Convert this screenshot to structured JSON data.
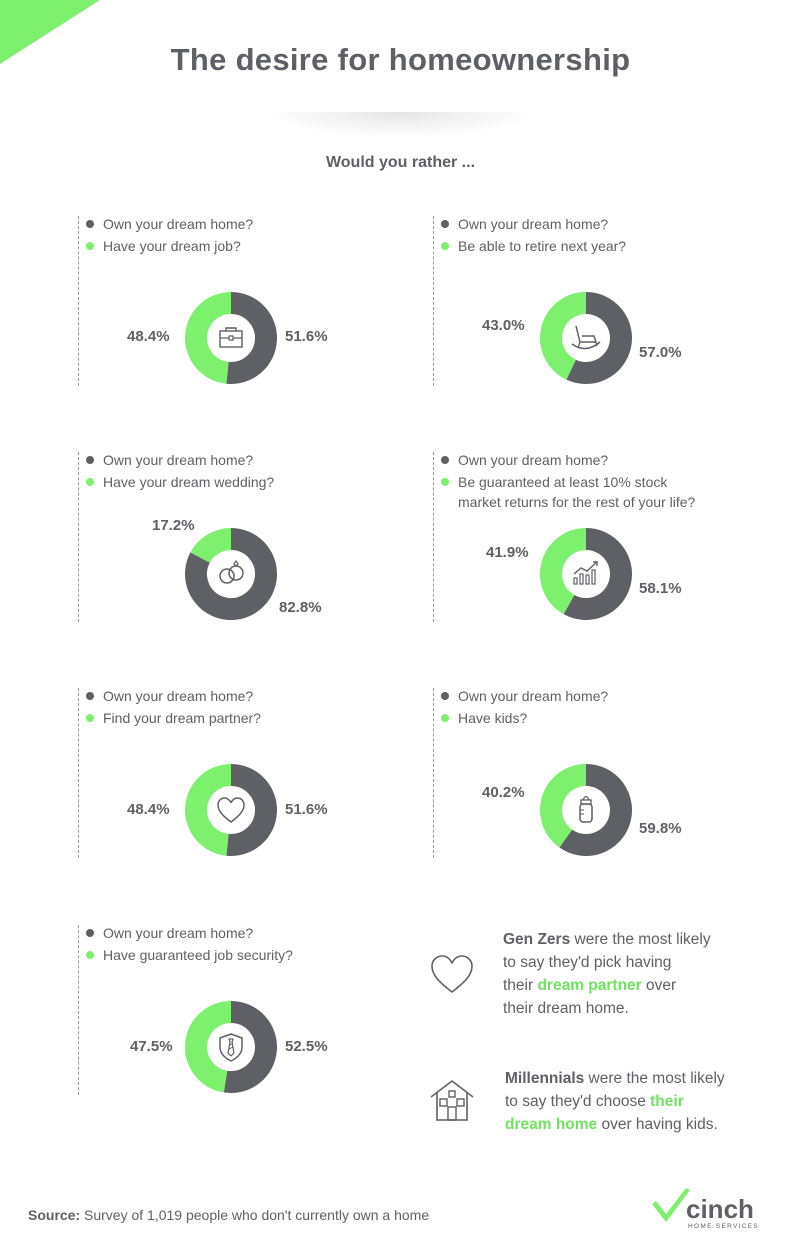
{
  "title": "The desire for homeownership",
  "subtitle": "Would you rather ...",
  "colors": {
    "gray": "#5f5f66",
    "green": "#7df06d",
    "highlight": "#6fe25e"
  },
  "chart_data": [
    {
      "type": "pie",
      "icon": "briefcase-icon",
      "categories": [
        "Own your dream home?",
        "Have your dream job?"
      ],
      "values": [
        51.6,
        48.4
      ],
      "labels": [
        "51.6%",
        "48.4%"
      ]
    },
    {
      "type": "pie",
      "icon": "rocking-chair-icon",
      "categories": [
        "Own your dream home?",
        "Be able to retire next year?"
      ],
      "values": [
        57.0,
        43.0
      ],
      "labels": [
        "57.0%",
        "43.0%"
      ]
    },
    {
      "type": "pie",
      "icon": "rings-icon",
      "categories": [
        "Own your dream home?",
        "Have your dream wedding?"
      ],
      "values": [
        82.8,
        17.2
      ],
      "labels": [
        "82.8%",
        "17.2%"
      ]
    },
    {
      "type": "pie",
      "icon": "stock-chart-icon",
      "categories": [
        "Own your dream home?",
        "Be guaranteed at least 10% stock market returns for the rest of your life?"
      ],
      "values": [
        58.1,
        41.9
      ],
      "labels": [
        "58.1%",
        "41.9%"
      ]
    },
    {
      "type": "pie",
      "icon": "heart-icon",
      "categories": [
        "Own your dream home?",
        "Find your dream partner?"
      ],
      "values": [
        51.6,
        48.4
      ],
      "labels": [
        "51.6%",
        "48.4%"
      ]
    },
    {
      "type": "pie",
      "icon": "baby-bottle-icon",
      "categories": [
        "Own your dream home?",
        "Have kids?"
      ],
      "values": [
        59.8,
        40.2
      ],
      "labels": [
        "59.8%",
        "40.2%"
      ]
    },
    {
      "type": "pie",
      "icon": "tie-shield-icon",
      "categories": [
        "Own your dream home?",
        "Have guaranteed job security?"
      ],
      "values": [
        52.5,
        47.5
      ],
      "labels": [
        "52.5%",
        "47.5%"
      ]
    }
  ],
  "options": [
    {
      "a": "Own your dream home?",
      "b": "Have your dream job?"
    },
    {
      "a": "Own your dream home?",
      "b": "Be able to retire next year?"
    },
    {
      "a": "Own your dream home?",
      "b": "Have your dream wedding?"
    },
    {
      "a": "Own your dream home?",
      "b1": "Be guaranteed at least 10% stock",
      "b2": "market returns for the rest of your life?"
    },
    {
      "a": "Own your dream home?",
      "b": "Find your dream partner?"
    },
    {
      "a": "Own your dream home?",
      "b": "Have kids?"
    },
    {
      "a": "Own your dream home?",
      "b": "Have guaranteed job security?"
    }
  ],
  "insights": {
    "genz": {
      "lead": "Gen Zers",
      "t1": " were the most likely",
      "t2": "to say they'd pick having",
      "t3a": "their ",
      "hl": "dream partner",
      "t3b": " over",
      "t4": "their dream home."
    },
    "millennials": {
      "lead": "Millennials",
      "t1": " were the most likely",
      "t2a": "to say they'd choose ",
      "hl1": "their",
      "hl2": "dream home",
      "t3b": " over having kids."
    }
  },
  "source": {
    "label": "Source:",
    "text": " Survey of 1,019 people who don't currently own a home"
  },
  "logo": {
    "name": "cinch",
    "tagline": "HOME SERVICES"
  }
}
